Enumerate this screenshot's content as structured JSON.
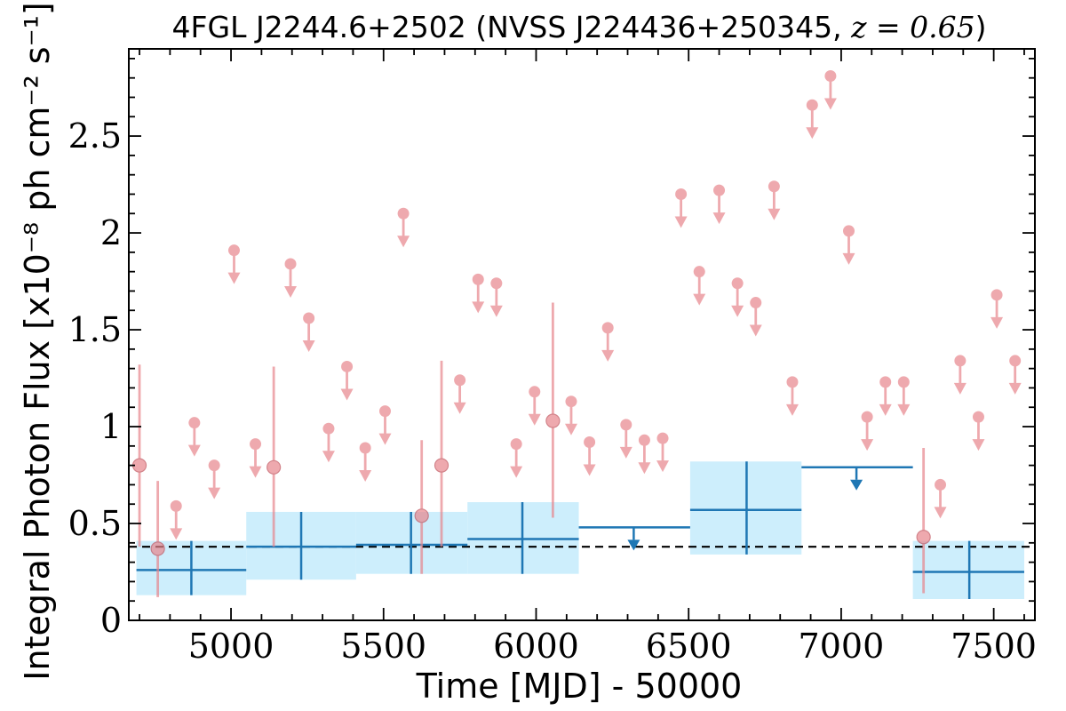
{
  "chart_data": {
    "type": "scatter",
    "title": "4FGL J2244.6+2502 (NVSS J224436+250345, ",
    "title_math": "z = 0.65",
    "title_close": ")",
    "xlabel": "Time [MJD] - 50000",
    "ylabel": "Integral Photon Flux [x10⁻⁸ ph cm⁻² s⁻¹]",
    "xlim": [
      4665,
      7635
    ],
    "ylim": [
      0,
      2.95
    ],
    "x_ticks": [
      5000,
      5500,
      6000,
      6500,
      7000,
      7500
    ],
    "x_tick_labels": [
      "5000",
      "5500",
      "6000",
      "6500",
      "7000",
      "7500"
    ],
    "y_ticks": [
      0,
      0.5,
      1,
      1.5,
      2,
      2.5
    ],
    "y_tick_labels": [
      "0",
      "0.5",
      "1",
      "1.5",
      "2",
      "2.5"
    ],
    "reference_level": 0.38,
    "colors": {
      "short_bins": "#e8868c",
      "long_bins": "#1f77b4",
      "long_bins_band": "#cdeefc",
      "reference_line": "#000000"
    },
    "series": [
      {
        "role": "short-bin detections",
        "points": [
          {
            "x": 4700,
            "y": 0.8,
            "lo": 0.38,
            "hi": 1.32
          },
          {
            "x": 4760,
            "y": 0.37,
            "lo": 0.12,
            "hi": 0.72
          },
          {
            "x": 5140,
            "y": 0.79,
            "lo": 0.38,
            "hi": 1.31
          },
          {
            "x": 5625,
            "y": 0.54,
            "lo": 0.24,
            "hi": 0.93
          },
          {
            "x": 5690,
            "y": 0.8,
            "lo": 0.38,
            "hi": 1.34
          },
          {
            "x": 6055,
            "y": 1.03,
            "lo": 0.53,
            "hi": 1.64
          },
          {
            "x": 7270,
            "y": 0.43,
            "lo": 0.14,
            "hi": 0.89
          }
        ]
      },
      {
        "role": "short-bin upper limits",
        "points": [
          {
            "x": 4820,
            "y": 0.59
          },
          {
            "x": 4880,
            "y": 1.02
          },
          {
            "x": 4945,
            "y": 0.8
          },
          {
            "x": 5010,
            "y": 1.91
          },
          {
            "x": 5080,
            "y": 0.91
          },
          {
            "x": 5195,
            "y": 1.84
          },
          {
            "x": 5255,
            "y": 1.56
          },
          {
            "x": 5320,
            "y": 0.99
          },
          {
            "x": 5380,
            "y": 1.31
          },
          {
            "x": 5440,
            "y": 0.89
          },
          {
            "x": 5505,
            "y": 1.08
          },
          {
            "x": 5565,
            "y": 2.1
          },
          {
            "x": 5750,
            "y": 1.24
          },
          {
            "x": 5810,
            "y": 1.76
          },
          {
            "x": 5870,
            "y": 1.74
          },
          {
            "x": 5935,
            "y": 0.91
          },
          {
            "x": 5995,
            "y": 1.18
          },
          {
            "x": 6115,
            "y": 1.13
          },
          {
            "x": 6175,
            "y": 0.92
          },
          {
            "x": 6235,
            "y": 1.51
          },
          {
            "x": 6295,
            "y": 1.01
          },
          {
            "x": 6355,
            "y": 0.93
          },
          {
            "x": 6415,
            "y": 0.94
          },
          {
            "x": 6475,
            "y": 2.2
          },
          {
            "x": 6535,
            "y": 1.8
          },
          {
            "x": 6600,
            "y": 2.22
          },
          {
            "x": 6660,
            "y": 1.74
          },
          {
            "x": 6720,
            "y": 1.64
          },
          {
            "x": 6780,
            "y": 2.24
          },
          {
            "x": 6840,
            "y": 1.23
          },
          {
            "x": 6905,
            "y": 2.66
          },
          {
            "x": 6965,
            "y": 2.81
          },
          {
            "x": 7025,
            "y": 2.01
          },
          {
            "x": 7085,
            "y": 1.05
          },
          {
            "x": 7145,
            "y": 1.23
          },
          {
            "x": 7205,
            "y": 1.23
          },
          {
            "x": 7325,
            "y": 0.7
          },
          {
            "x": 7390,
            "y": 1.34
          },
          {
            "x": 7450,
            "y": 1.05
          },
          {
            "x": 7510,
            "y": 1.68
          },
          {
            "x": 7570,
            "y": 1.34
          }
        ]
      },
      {
        "role": "long-bin detections",
        "bins": [
          {
            "x0": 4690,
            "x1": 5050,
            "xc": 4870,
            "y": 0.26,
            "lo": 0.13,
            "hi": 0.41
          },
          {
            "x0": 5050,
            "x1": 5410,
            "xc": 5230,
            "y": 0.38,
            "lo": 0.21,
            "hi": 0.56
          },
          {
            "x0": 5410,
            "x1": 5775,
            "xc": 5590,
            "y": 0.39,
            "lo": 0.24,
            "hi": 0.56
          },
          {
            "x0": 5775,
            "x1": 6140,
            "xc": 5955,
            "y": 0.42,
            "lo": 0.24,
            "hi": 0.61
          },
          {
            "x0": 6505,
            "x1": 6870,
            "xc": 6690,
            "y": 0.57,
            "lo": 0.34,
            "hi": 0.82
          },
          {
            "x0": 7235,
            "x1": 7600,
            "xc": 7420,
            "y": 0.25,
            "lo": 0.11,
            "hi": 0.41
          }
        ]
      },
      {
        "role": "long-bin upper limits",
        "bins": [
          {
            "x0": 6140,
            "x1": 6505,
            "xc": 6320,
            "y": 0.48
          },
          {
            "x0": 6870,
            "x1": 7235,
            "xc": 7050,
            "y": 0.79
          }
        ]
      }
    ]
  }
}
